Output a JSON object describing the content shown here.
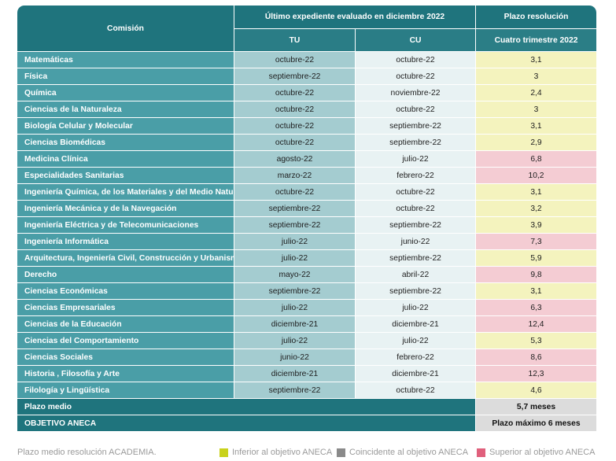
{
  "header": {
    "commission_label": "Comisión",
    "evaluated_label": "Último expediente evaluado en diciembre 2022",
    "plazo_label": "Plazo resolución",
    "tu_label": "TU",
    "cu_label": "CU",
    "period_label": "Cuatro trimestre 2022"
  },
  "rows": [
    {
      "name": "Matemáticas",
      "tu": "octubre-22",
      "cu": "octubre-22",
      "plazo": "3,1",
      "status": "inferior"
    },
    {
      "name": "Física",
      "tu": "septiembre-22",
      "cu": "octubre-22",
      "plazo": "3",
      "status": "inferior"
    },
    {
      "name": "Química",
      "tu": "octubre-22",
      "cu": "noviembre-22",
      "plazo": "2,4",
      "status": "inferior"
    },
    {
      "name": "Ciencias de la Naturaleza",
      "tu": "octubre-22",
      "cu": "octubre-22",
      "plazo": "3",
      "status": "inferior"
    },
    {
      "name": "Biología Celular y Molecular",
      "tu": "octubre-22",
      "cu": "septiembre-22",
      "plazo": "3,1",
      "status": "inferior"
    },
    {
      "name": "Ciencias Biomédicas",
      "tu": "octubre-22",
      "cu": "septiembre-22",
      "plazo": "2,9",
      "status": "inferior"
    },
    {
      "name": "Medicina Clínica",
      "tu": "agosto-22",
      "cu": "julio-22",
      "plazo": "6,8",
      "status": "superior"
    },
    {
      "name": "Especialidades Sanitarias",
      "tu": "marzo-22",
      "cu": "febrero-22",
      "plazo": "10,2",
      "status": "superior"
    },
    {
      "name": "Ingeniería Química, de los Materiales y del Medio Natural",
      "tu": "octubre-22",
      "cu": "octubre-22",
      "plazo": "3,1",
      "status": "inferior"
    },
    {
      "name": "Ingeniería Mecánica y de la Navegación",
      "tu": "septiembre-22",
      "cu": "octubre-22",
      "plazo": "3,2",
      "status": "inferior"
    },
    {
      "name": "Ingeniería Eléctrica y de Telecomunicaciones",
      "tu": "septiembre-22",
      "cu": "septiembre-22",
      "plazo": "3,9",
      "status": "inferior"
    },
    {
      "name": "Ingeniería Informática",
      "tu": "julio-22",
      "cu": "junio-22",
      "plazo": "7,3",
      "status": "superior"
    },
    {
      "name": "Arquitectura, Ingeniería Civil, Construcción y Urbanismo",
      "tu": "julio-22",
      "cu": "septiembre-22",
      "plazo": "5,9",
      "status": "inferior"
    },
    {
      "name": "Derecho",
      "tu": "mayo-22",
      "cu": "abril-22",
      "plazo": "9,8",
      "status": "superior"
    },
    {
      "name": "Ciencias Económicas",
      "tu": "septiembre-22",
      "cu": "septiembre-22",
      "plazo": "3,1",
      "status": "inferior"
    },
    {
      "name": "Ciencias  Empresariales",
      "tu": "julio-22",
      "cu": "julio-22",
      "plazo": "6,3",
      "status": "superior"
    },
    {
      "name": "Ciencias de la Educación",
      "tu": "diciembre-21",
      "cu": "diciembre-21",
      "plazo": "12,4",
      "status": "superior"
    },
    {
      "name": "Ciencias del Comportamiento",
      "tu": "julio-22",
      "cu": "julio-22",
      "plazo": "5,3",
      "status": "inferior"
    },
    {
      "name": "Ciencias Sociales",
      "tu": "junio-22",
      "cu": "febrero-22",
      "plazo": "8,6",
      "status": "superior"
    },
    {
      "name": "Historia , Filosofía y Arte",
      "tu": "diciembre-21",
      "cu": "diciembre-21",
      "plazo": "12,3",
      "status": "superior"
    },
    {
      "name": "Filología y Lingüística",
      "tu": "septiembre-22",
      "cu": "octubre-22",
      "plazo": "4,6",
      "status": "inferior"
    }
  ],
  "footer": {
    "plazo_medio_label": "Plazo medio",
    "plazo_medio_value": "5,7 meses",
    "objetivo_label": "OBJETIVO ANECA",
    "objetivo_value": "Plazo máximo 6 meses"
  },
  "legend": {
    "caption": "Plazo medio resolución ACADEMIA.",
    "items": [
      {
        "label": "Inferior al objetivo ANECA",
        "color": "#c9d21c"
      },
      {
        "label": "Coincidente al objetivo ANECA",
        "color": "#8a8a8a"
      },
      {
        "label": "Superior al objetivo ANECA",
        "color": "#e0607c"
      }
    ]
  }
}
